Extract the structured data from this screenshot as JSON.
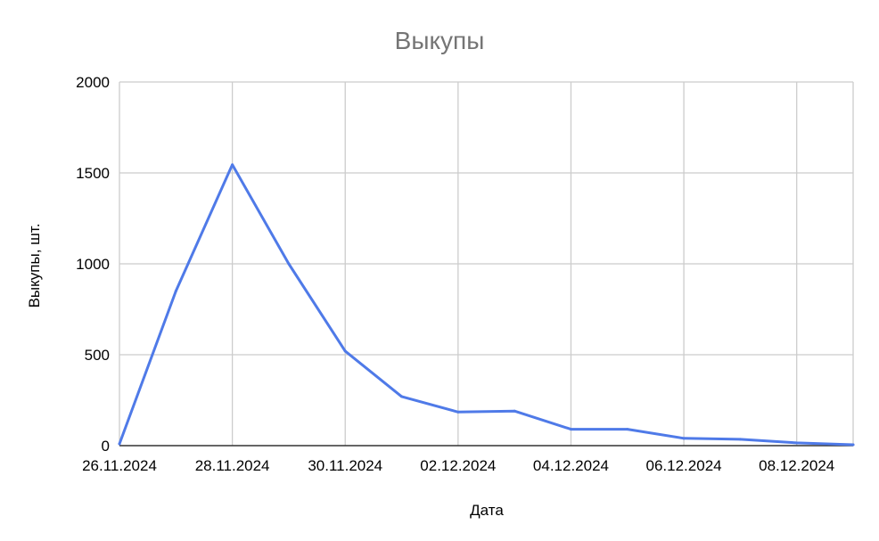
{
  "chart_data": {
    "type": "line",
    "title": "Выкупы",
    "xlabel": "Дата",
    "ylabel": "Выкупы, шт.",
    "ylim": [
      0,
      2000
    ],
    "y_ticks": [
      0,
      500,
      1000,
      1500,
      2000
    ],
    "y_tick_labels": [
      "0",
      "500",
      "1000",
      "1500",
      "2000"
    ],
    "x_ticks": [
      "26.11.2024",
      "28.11.2024",
      "30.11.2024",
      "02.12.2024",
      "04.12.2024",
      "06.12.2024",
      "08.12.2024"
    ],
    "x": [
      "26.11.2024",
      "27.11.2024",
      "28.11.2024",
      "29.11.2024",
      "30.11.2024",
      "01.12.2024",
      "02.12.2024",
      "03.12.2024",
      "04.12.2024",
      "05.12.2024",
      "06.12.2024",
      "07.12.2024",
      "08.12.2024",
      "09.12.2024"
    ],
    "series": [
      {
        "values": [
          10,
          850,
          1545,
          1000,
          520,
          270,
          185,
          190,
          90,
          90,
          40,
          35,
          15,
          5
        ]
      }
    ],
    "grid": true,
    "legend": "none",
    "line_color": "#4f7ae8",
    "grid_color": "#cccccc",
    "baseline_color": "#333333"
  }
}
